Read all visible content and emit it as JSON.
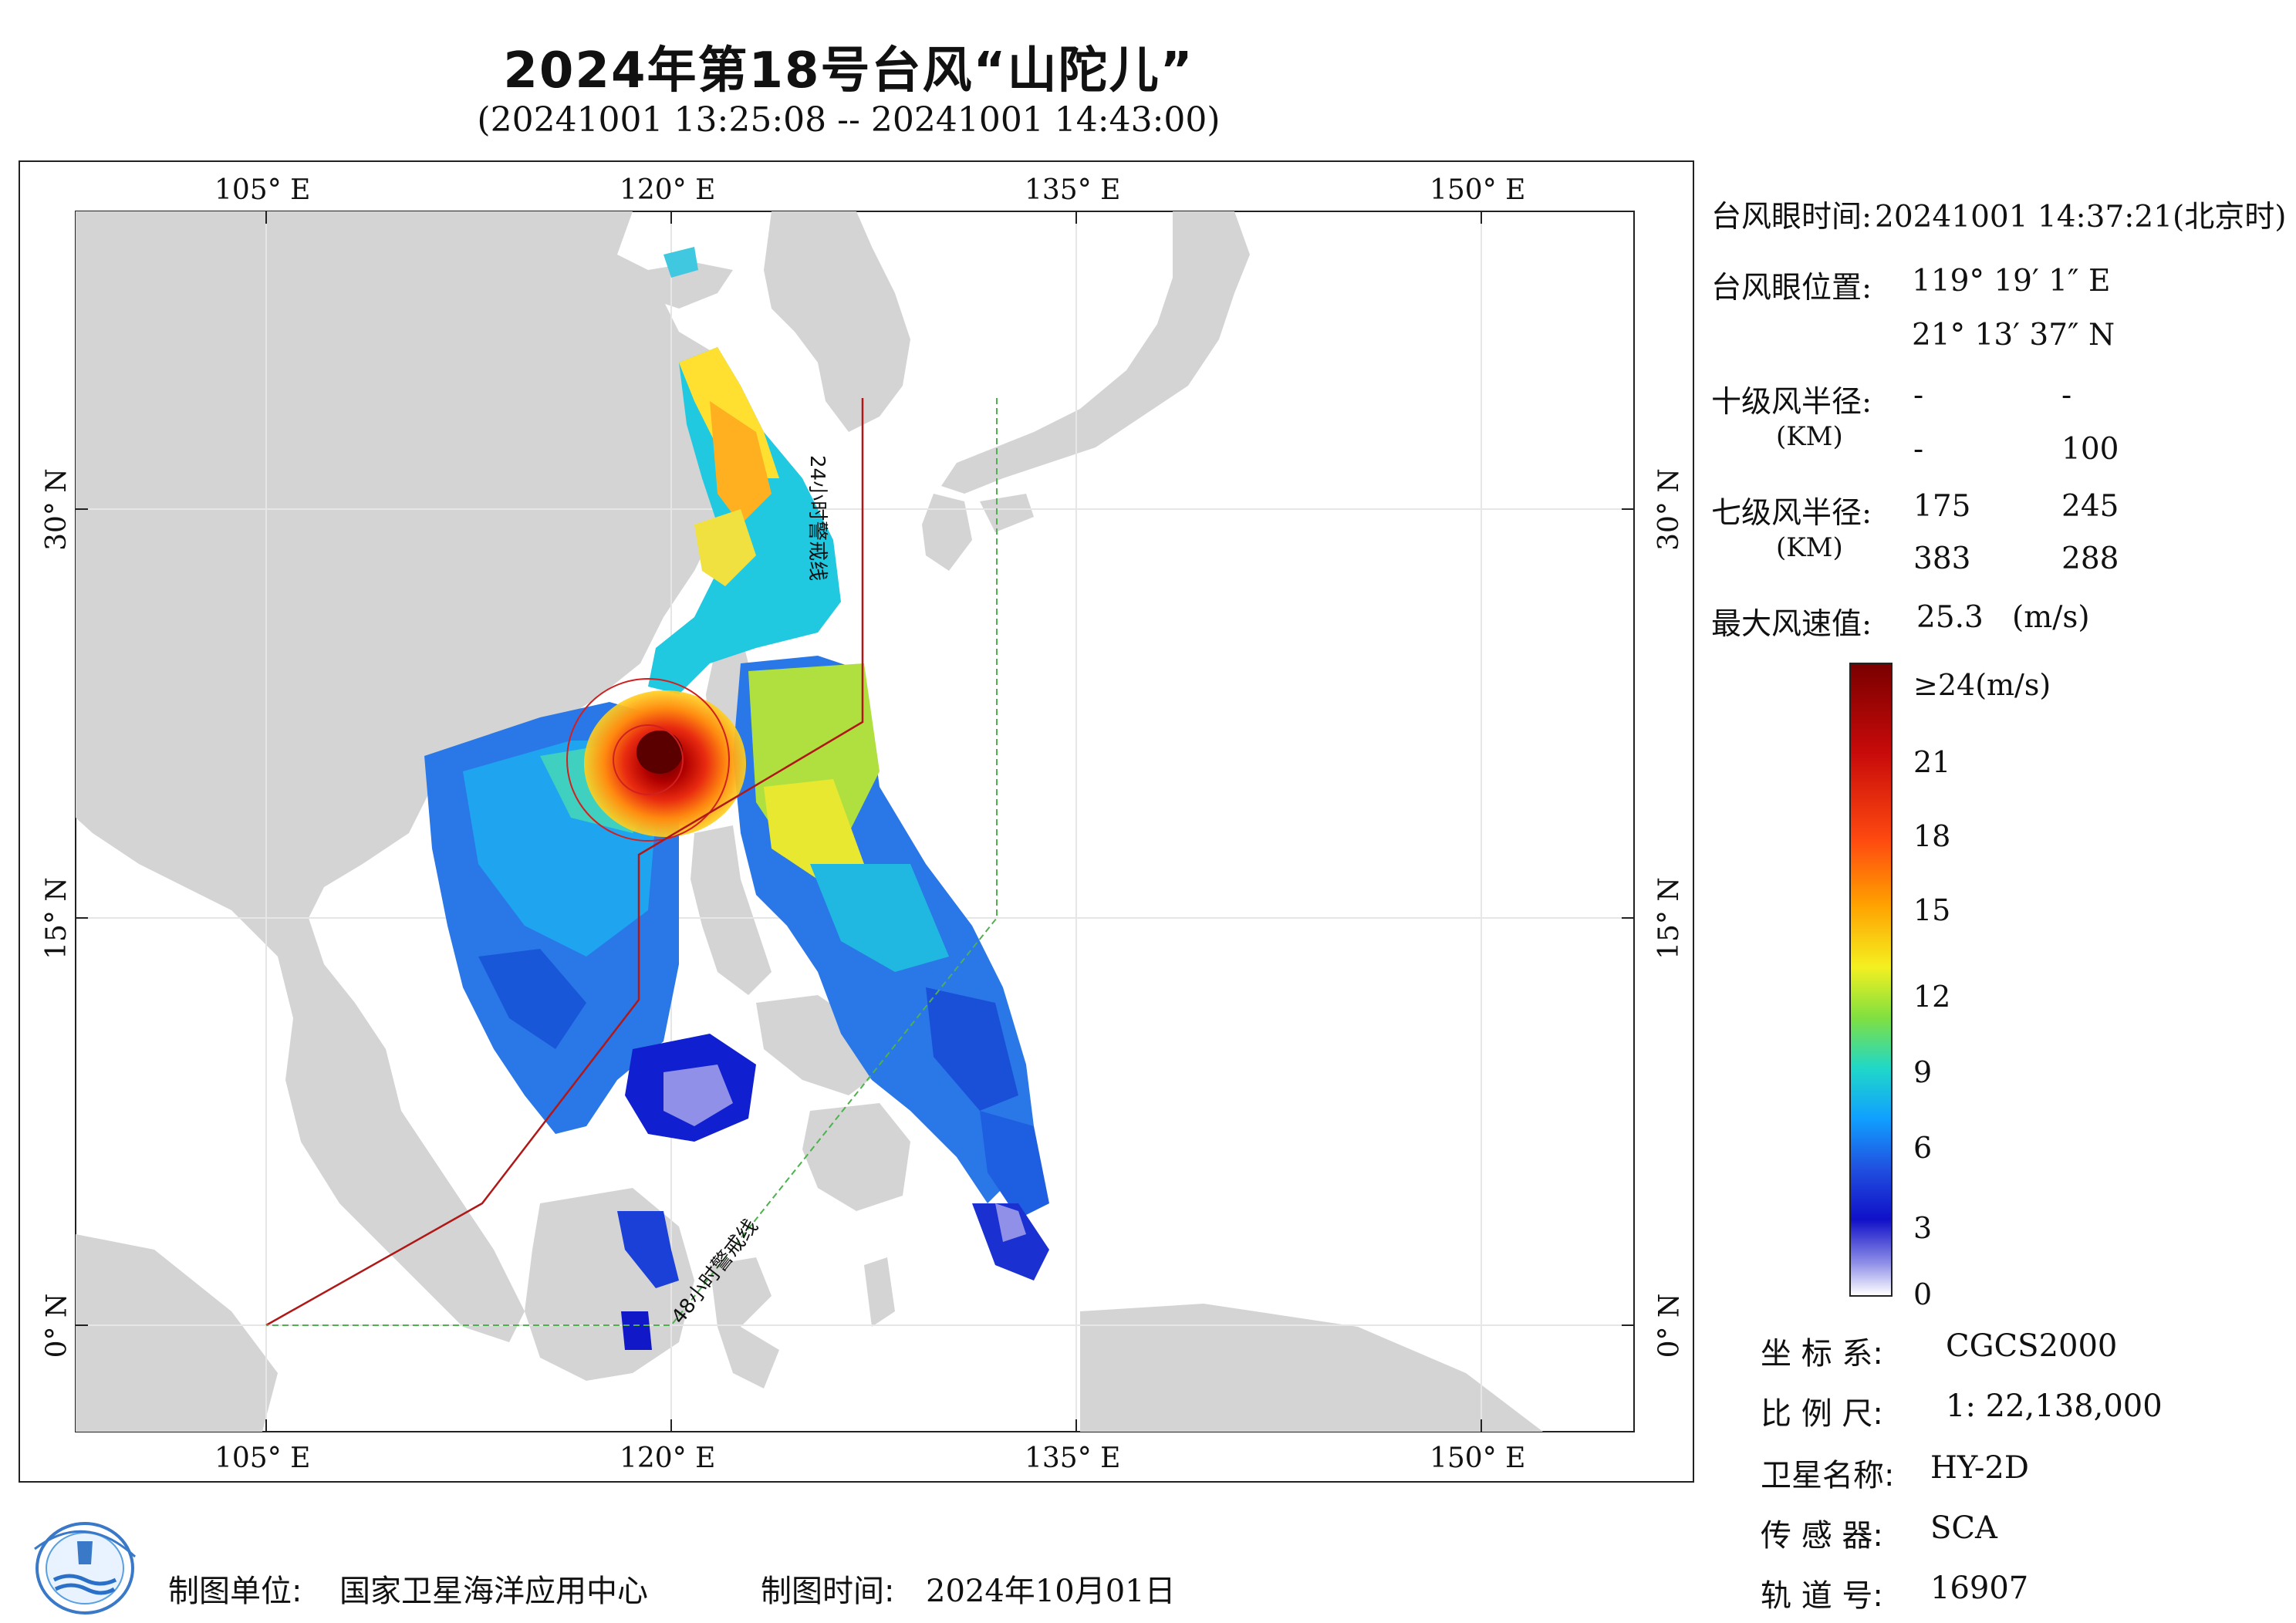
{
  "title": "2024年第18号台风“山陀儿”",
  "subtitle": "(20241001 13:25:08 -- 20241001 14:43:00)",
  "axes": {
    "lon_labels": [
      "105° E",
      "120° E",
      "135° E",
      "150° E"
    ],
    "lat_labels": [
      "30° N",
      "15° N",
      "0° N"
    ]
  },
  "warning_lines": {
    "line24": "24小时警戒线",
    "line48": "48小时警戒线"
  },
  "info": {
    "eye_time_label": "台风眼时间:",
    "eye_time_value": "20241001 14:37:21(北京时)",
    "eye_pos_label": "台风眼位置:",
    "eye_lon": "119° 19′ 1″ E",
    "eye_lat": "21° 13′ 37″ N",
    "r10_label": "十级风半径:",
    "r10_unit": "(KM)",
    "r10_values": [
      "-",
      "-",
      "-",
      "100"
    ],
    "r7_label": "七级风半径:",
    "r7_unit": "(KM)",
    "r7_values": [
      "175",
      "245",
      "383",
      "288"
    ],
    "max_wind_label": "最大风速值:",
    "max_wind_value": "25.3",
    "max_wind_unit": "(m/s)"
  },
  "colorbar": {
    "labels": [
      "≥24(m/s)",
      "21",
      "18",
      "15",
      "12",
      "9",
      "6",
      "3",
      "0"
    ],
    "colors": [
      "#7a0000",
      "#d41a0a",
      "#ff5a10",
      "#ffb000",
      "#f4f020",
      "#90e040",
      "#20d0c0",
      "#10a0ff",
      "#2050e0",
      "#1010c8",
      "#9090e8",
      "#ffffff"
    ]
  },
  "metadata": {
    "crs_label": "坐 标 系:",
    "crs_value": "CGCS2000",
    "scale_label": "比 例 尺:",
    "scale_value": "1: 22,138,000",
    "sat_label": "卫星名称:",
    "sat_value": "HY-2D",
    "sensor_label": "传 感 器:",
    "sensor_value": "SCA",
    "orbit_label": "轨 道 号:",
    "orbit_value": "16907"
  },
  "footer": {
    "maker_label": "制图单位:",
    "maker_value": "国家卫星海洋应用中心",
    "time_label": "制图时间:",
    "time_value": "2024年10月01日"
  },
  "colors": {
    "land": "#d4d4d4",
    "line24": "#b01818",
    "line48": "#50b050",
    "typhoon_circle": "#d02020"
  }
}
